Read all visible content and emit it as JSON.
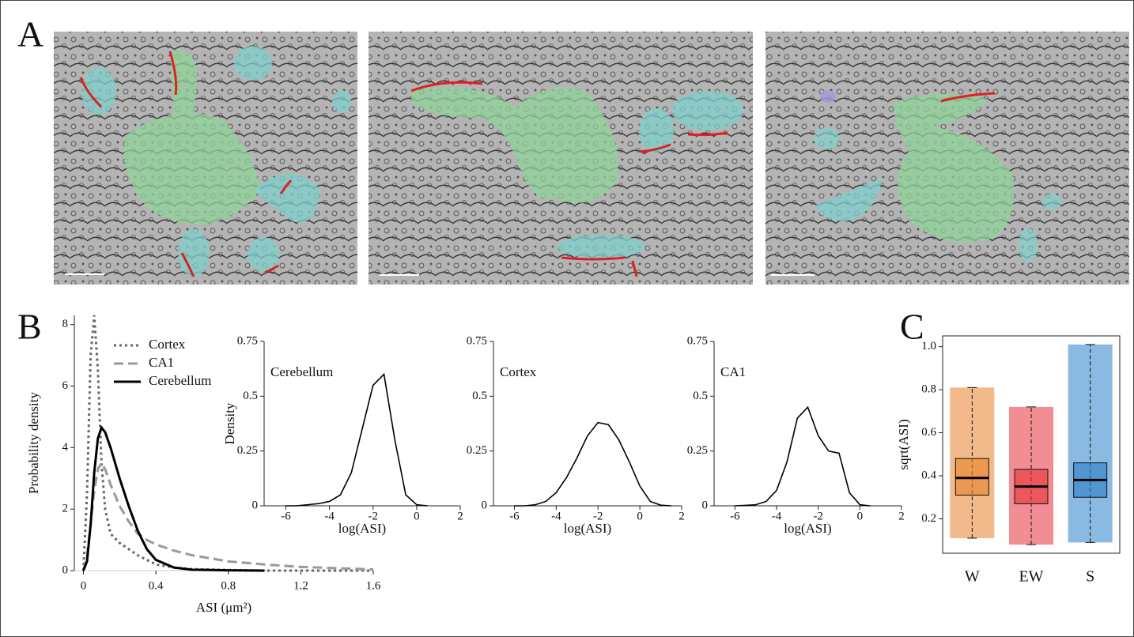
{
  "panel_labels": [
    "A",
    "B",
    "C"
  ],
  "chart_data": [
    {
      "type": "line",
      "xlabel": "ASI (μm²)",
      "ylabel": "Probability density",
      "x": [
        0,
        0.02,
        0.04,
        0.06,
        0.08,
        0.1,
        0.12,
        0.15,
        0.2,
        0.25,
        0.3,
        0.35,
        0.4,
        0.5,
        0.6,
        0.8,
        1.0,
        1.2,
        1.4,
        1.6
      ],
      "series": [
        {
          "name": "Cortex",
          "color": "#666666",
          "line_style": "dotted",
          "values": [
            0,
            2.5,
            7.0,
            8.3,
            6.5,
            3.5,
            2.0,
            1.2,
            0.9,
            0.7,
            0.5,
            0.35,
            0.2,
            0.1,
            0.05,
            0.02,
            0,
            0,
            0,
            0
          ]
        },
        {
          "name": "CA1",
          "color": "#999999",
          "line_style": "dashed",
          "values": [
            0,
            0.5,
            1.5,
            2.6,
            3.3,
            3.5,
            3.3,
            2.8,
            2.1,
            1.6,
            1.2,
            1.0,
            0.85,
            0.65,
            0.5,
            0.3,
            0.2,
            0.12,
            0.08,
            0.04
          ]
        },
        {
          "name": "Cerebellum",
          "color": "#000000",
          "line_style": "solid",
          "values": [
            0,
            0.3,
            1.5,
            3.2,
            4.3,
            4.65,
            4.5,
            4.0,
            3.0,
            2.1,
            1.3,
            0.7,
            0.35,
            0.1,
            0.03,
            0.01,
            0,
            null,
            null,
            null
          ]
        }
      ],
      "xlim": [
        -0.05,
        1.6
      ],
      "ylim": [
        0,
        8.3
      ],
      "xticks": [
        0,
        0.4,
        0.8,
        1.2,
        1.6
      ],
      "yticks": [
        0,
        2,
        4,
        6,
        8
      ],
      "legend": "upper right"
    },
    {
      "type": "line",
      "title": "Cerebellum",
      "xlabel": "log(ASI)",
      "ylabel": "Density",
      "x": [
        -6,
        -5.5,
        -5,
        -4.5,
        -4,
        -3.5,
        -3,
        -2.5,
        -2,
        -1.5,
        -1,
        -0.5,
        0,
        0.5,
        1,
        1.5
      ],
      "series": [
        {
          "color": "#000000",
          "line_style": "solid",
          "values": [
            0,
            0,
            0.005,
            0.01,
            0.02,
            0.05,
            0.15,
            0.35,
            0.55,
            0.6,
            0.3,
            0.05,
            0.005,
            0,
            null,
            null
          ]
        }
      ],
      "xlim": [
        -7,
        2
      ],
      "ylim": [
        0,
        0.75
      ],
      "xticks": [
        -6,
        -4,
        -2,
        0,
        2
      ],
      "yticks": [
        0,
        0.25,
        0.5,
        0.75
      ]
    },
    {
      "type": "line",
      "title": "Cortex",
      "xlabel": "log(ASI)",
      "x": [
        -6,
        -5.5,
        -5,
        -4.5,
        -4,
        -3.5,
        -3,
        -2.5,
        -2,
        -1.5,
        -1,
        -0.5,
        0,
        0.5,
        1,
        1.5
      ],
      "series": [
        {
          "color": "#000000",
          "line_style": "solid",
          "values": [
            0,
            0,
            0.005,
            0.02,
            0.06,
            0.13,
            0.22,
            0.32,
            0.38,
            0.37,
            0.3,
            0.2,
            0.09,
            0.02,
            0.003,
            0
          ]
        }
      ],
      "xlim": [
        -7,
        2
      ],
      "ylim": [
        0,
        0.75
      ],
      "xticks": [
        -6,
        -4,
        -2,
        0,
        2
      ],
      "yticks": [
        0,
        0.25,
        0.5,
        0.75
      ]
    },
    {
      "type": "line",
      "title": "CA1",
      "xlabel": "log(ASI)",
      "x": [
        -6,
        -5.5,
        -5,
        -4.5,
        -4,
        -3.5,
        -3,
        -2.5,
        -2,
        -1.5,
        -1,
        -0.5,
        0,
        0.5,
        1,
        1.5
      ],
      "series": [
        {
          "color": "#000000",
          "line_style": "solid",
          "values": [
            0,
            0.002,
            0.005,
            0.02,
            0.07,
            0.2,
            0.4,
            0.45,
            0.32,
            0.25,
            0.24,
            0.06,
            0.005,
            0,
            null,
            null
          ]
        }
      ],
      "xlim": [
        -7,
        2
      ],
      "ylim": [
        0,
        0.75
      ],
      "xticks": [
        -6,
        -4,
        -2,
        0,
        2
      ],
      "yticks": [
        0,
        0.25,
        0.5,
        0.75
      ]
    },
    {
      "type": "box",
      "ylabel": "sqrt(ASI)",
      "categories": [
        "W",
        "EW",
        "S"
      ],
      "colors": [
        "#e8822a",
        "#e8323a",
        "#2a7fc8"
      ],
      "low": [
        0.11,
        0.08,
        0.09
      ],
      "q1": [
        0.31,
        0.27,
        0.3
      ],
      "median": [
        0.39,
        0.35,
        0.38
      ],
      "q3": [
        0.48,
        0.43,
        0.46
      ],
      "high": [
        0.81,
        0.72,
        1.01
      ],
      "ylim": [
        0.04,
        1.05
      ],
      "yticks": [
        0.2,
        0.4,
        0.6,
        0.8,
        {
          "value": 1,
          "label": "1.0"
        }
      ]
    }
  ]
}
